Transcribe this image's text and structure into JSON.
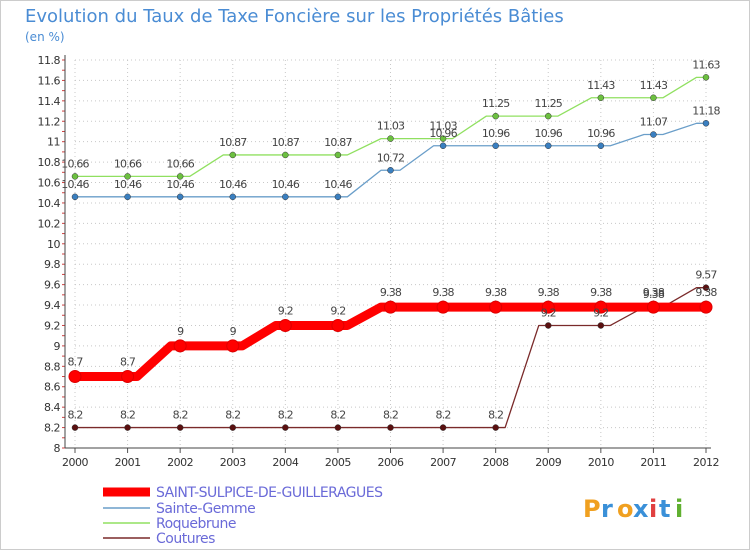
{
  "chart_data": {
    "type": "line",
    "title": "Evolution du Taux de Taxe Foncière sur les Propriétés Bâties",
    "subtitle": "(en %)",
    "x": [
      "2000",
      "2001",
      "2002",
      "2003",
      "2004",
      "2005",
      "2006",
      "2007",
      "2008",
      "2009",
      "2010",
      "2011",
      "2012"
    ],
    "ylim": [
      8,
      11.8
    ],
    "yticks": [
      "8",
      "8.2",
      "8.4",
      "8.6",
      "8.8",
      "9",
      "9.2",
      "9.4",
      "9.6",
      "9.8",
      "10",
      "10.2",
      "10.4",
      "10.6",
      "10.8",
      "11",
      "11.2",
      "11.4",
      "11.6",
      "11.8"
    ],
    "series": [
      {
        "name": "SAINT-SULPICE-DE-GUILLERAGUES",
        "color": "#ff0000",
        "dot": "#cc0000",
        "values": [
          8.7,
          8.7,
          9,
          9,
          9.2,
          9.2,
          9.38,
          9.38,
          9.38,
          9.38,
          9.38,
          9.38,
          9.38
        ],
        "labels": [
          "8.7",
          "8.7",
          "9",
          "9",
          "9.2",
          "9.2",
          "9.38",
          "9.38",
          "9.38",
          "9.38",
          "9.38",
          "9.38",
          "9.38"
        ]
      },
      {
        "name": "Sainte-Gemme",
        "color": "#6a9ec9",
        "dot": "#3a7fc0",
        "values": [
          10.46,
          10.46,
          10.46,
          10.46,
          10.46,
          10.46,
          10.72,
          10.96,
          10.96,
          10.96,
          10.96,
          11.07,
          11.18
        ],
        "labels": [
          "10.46",
          "10.46",
          "10.46",
          "10.46",
          "10.46",
          "10.46",
          "10.72",
          "10.96",
          "10.96",
          "10.96",
          "10.96",
          "11.07",
          "11.18"
        ]
      },
      {
        "name": "Roquebrune",
        "color": "#90e060",
        "dot": "#6cc040",
        "values": [
          10.66,
          10.66,
          10.66,
          10.87,
          10.87,
          10.87,
          11.03,
          11.03,
          11.25,
          11.25,
          11.43,
          11.43,
          11.63
        ],
        "labels": [
          "10.66",
          "10.66",
          "10.66",
          "10.87",
          "10.87",
          "10.87",
          "11.03",
          "11.03",
          "11.25",
          "11.25",
          "11.43",
          "11.43",
          "11.63"
        ]
      },
      {
        "name": "Coutures",
        "color": "#7a2a2a",
        "dot": "#5a1010",
        "values": [
          8.2,
          8.2,
          8.2,
          8.2,
          8.2,
          8.2,
          8.2,
          8.2,
          8.2,
          9.2,
          9.2,
          9.38,
          9.57
        ],
        "labels": [
          "8.2",
          "8.2",
          "8.2",
          "8.2",
          "8.2",
          "8.2",
          "8.2",
          "8.2",
          "8.2",
          "9.2",
          "9.2",
          "9.38",
          "9.57"
        ]
      }
    ]
  },
  "brand": {
    "logo_text": "Proxiti"
  },
  "colors": {
    "title": "#4a8cd4",
    "legend_text": "#6a6ad8",
    "background": "#ffffff",
    "border": "#cccccc"
  }
}
